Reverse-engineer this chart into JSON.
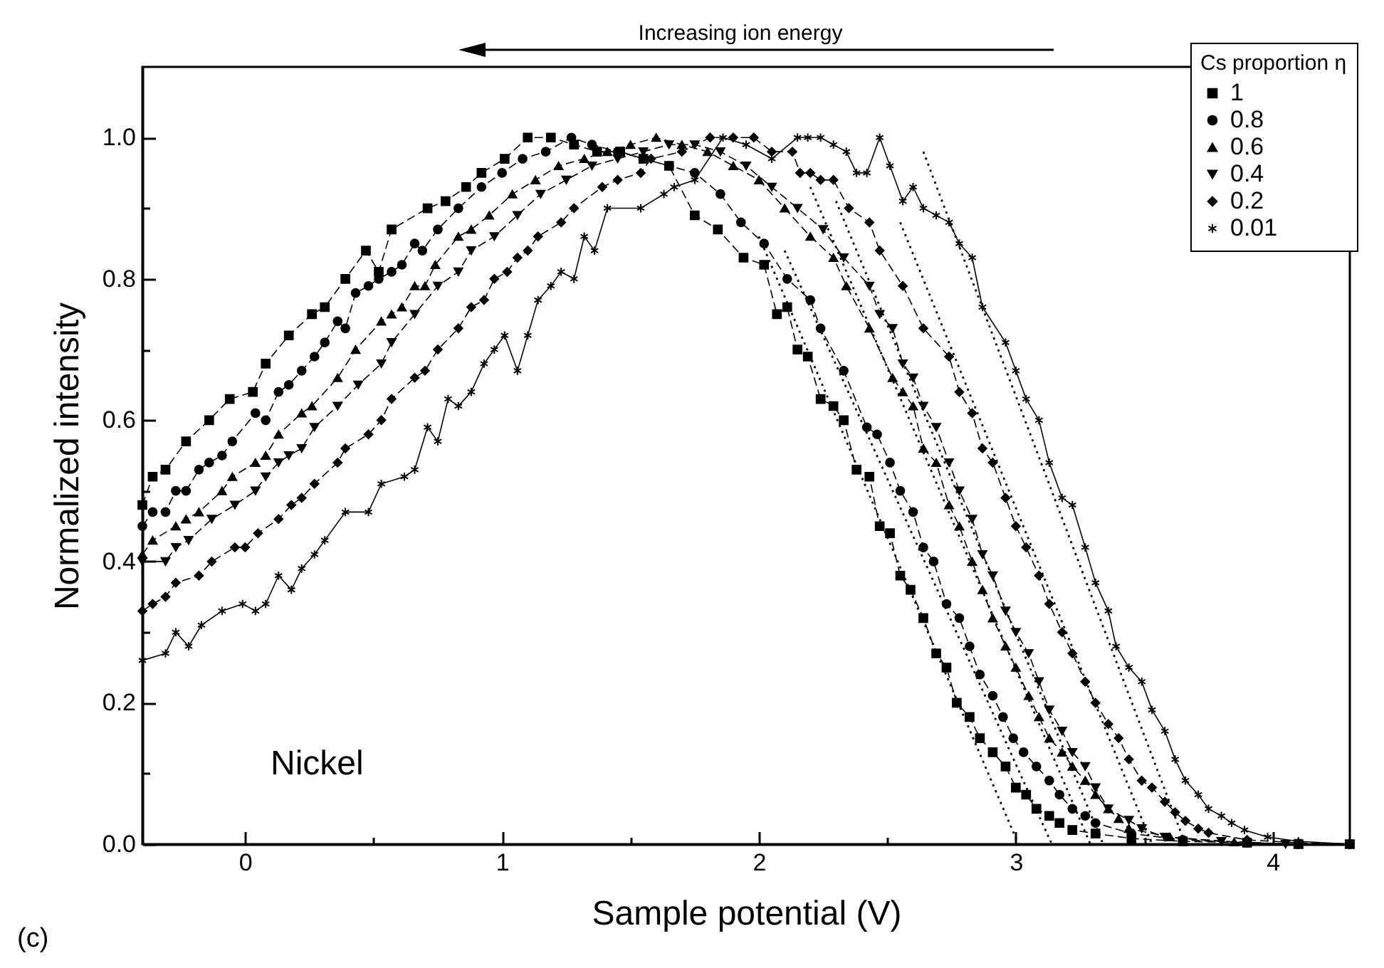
{
  "chart_data": {
    "type": "line",
    "xlabel": "Sample potential (V)",
    "ylabel": "Normalized intensity",
    "legend_title": "Cs proportion η",
    "legend": "top right",
    "annotations": [
      "Increasing ion energy",
      "Nickel",
      "(c)"
    ],
    "xlim": [
      -0.4,
      4.3
    ],
    "ylim": [
      0,
      1.1
    ],
    "xticks": [
      0,
      {
        "value": 0.5,
        "label": null
      },
      1,
      {
        "value": 1.5,
        "label": null
      },
      2,
      {
        "value": 2.5,
        "label": null
      },
      3,
      {
        "value": 3.5,
        "label": null
      },
      4
    ],
    "yticks": [
      {
        "value": 0,
        "label": "0.0"
      },
      {
        "value": 0.1,
        "label": null
      },
      {
        "value": 0.2,
        "label": "0.2"
      },
      {
        "value": 0.3,
        "label": null
      },
      {
        "value": 0.4,
        "label": "0.4"
      },
      {
        "value": 0.5,
        "label": null
      },
      {
        "value": 0.6,
        "label": "0.6"
      },
      {
        "value": 0.7,
        "label": null
      },
      {
        "value": 0.8,
        "label": "0.8"
      },
      {
        "value": 0.9,
        "label": null
      },
      {
        "value": 1,
        "label": "1.0"
      }
    ],
    "series": [
      {
        "name": "1",
        "color": "#000000",
        "marker": "square",
        "line_style": "dashed",
        "x": [
          -0.4,
          -0.36,
          -0.31,
          -0.23,
          -0.14,
          -0.06,
          0.03,
          0.08,
          0.17,
          0.26,
          0.31,
          0.39,
          0.47,
          0.52,
          0.57,
          0.71,
          0.78,
          0.86,
          0.92,
          1.01,
          1.1,
          1.19,
          1.28,
          1.37,
          1.46,
          1.55,
          1.65,
          1.75,
          1.84,
          1.94,
          2.02,
          2.07,
          2.11,
          2.15,
          2.19,
          2.24,
          2.29,
          2.33,
          2.38,
          2.43,
          2.47,
          2.51,
          2.55,
          2.59,
          2.64,
          2.69,
          2.73,
          2.77,
          2.82,
          2.86,
          2.91,
          2.96,
          3.0,
          3.04,
          3.08,
          3.13,
          3.17,
          3.22,
          3.31,
          3.45,
          3.65,
          3.9,
          4.1,
          4.3
        ],
        "values": [
          0.48,
          0.52,
          0.53,
          0.57,
          0.6,
          0.63,
          0.64,
          0.68,
          0.72,
          0.75,
          0.76,
          0.8,
          0.84,
          0.81,
          0.87,
          0.9,
          0.91,
          0.93,
          0.95,
          0.97,
          1.0,
          1.0,
          0.99,
          0.98,
          0.98,
          0.97,
          0.96,
          0.89,
          0.87,
          0.83,
          0.82,
          0.75,
          0.76,
          0.7,
          0.69,
          0.63,
          0.62,
          0.6,
          0.53,
          0.52,
          0.45,
          0.44,
          0.38,
          0.36,
          0.32,
          0.27,
          0.25,
          0.2,
          0.18,
          0.15,
          0.13,
          0.11,
          0.08,
          0.07,
          0.05,
          0.04,
          0.03,
          0.02,
          0.015,
          0.008,
          0.004,
          0.002,
          0,
          0
        ]
      },
      {
        "name": "0.8",
        "color": "#000000",
        "marker": "circle",
        "line_style": "dashed",
        "x": [
          -0.4,
          -0.36,
          -0.31,
          -0.27,
          -0.23,
          -0.18,
          -0.14,
          -0.09,
          -0.05,
          0.04,
          0.08,
          0.13,
          0.17,
          0.22,
          0.27,
          0.31,
          0.36,
          0.39,
          0.43,
          0.48,
          0.52,
          0.57,
          0.61,
          0.66,
          0.69,
          0.75,
          0.83,
          0.92,
          1.0,
          1.08,
          1.17,
          1.27,
          1.35,
          1.45,
          1.55,
          1.65,
          1.75,
          1.85,
          1.93,
          2.02,
          2.11,
          2.2,
          2.24,
          2.33,
          2.42,
          2.46,
          2.51,
          2.55,
          2.6,
          2.64,
          2.68,
          2.73,
          2.78,
          2.82,
          2.86,
          2.91,
          2.95,
          2.99,
          3.03,
          3.08,
          3.13,
          3.17,
          3.22,
          3.27,
          3.31,
          3.45,
          3.65,
          3.9,
          4.1,
          4.3
        ],
        "values": [
          0.45,
          0.47,
          0.47,
          0.5,
          0.5,
          0.53,
          0.54,
          0.55,
          0.57,
          0.61,
          0.6,
          0.64,
          0.65,
          0.67,
          0.69,
          0.71,
          0.74,
          0.73,
          0.78,
          0.79,
          0.8,
          0.81,
          0.82,
          0.85,
          0.84,
          0.87,
          0.9,
          0.93,
          0.95,
          0.97,
          0.98,
          1.0,
          0.99,
          0.98,
          0.97,
          0.96,
          0.95,
          0.92,
          0.88,
          0.85,
          0.8,
          0.77,
          0.73,
          0.67,
          0.59,
          0.58,
          0.54,
          0.5,
          0.47,
          0.42,
          0.4,
          0.34,
          0.32,
          0.28,
          0.24,
          0.21,
          0.18,
          0.15,
          0.13,
          0.11,
          0.09,
          0.07,
          0.05,
          0.04,
          0.03,
          0.015,
          0.006,
          0.002,
          0,
          0
        ]
      },
      {
        "name": "0.6",
        "color": "#000000",
        "marker": "triangle",
        "line_style": "dashed",
        "x": [
          -0.4,
          -0.36,
          -0.27,
          -0.23,
          -0.18,
          -0.09,
          -0.05,
          0.04,
          0.08,
          0.13,
          0.22,
          0.26,
          0.36,
          0.43,
          0.53,
          0.57,
          0.61,
          0.66,
          0.7,
          0.74,
          0.83,
          0.88,
          0.95,
          1.04,
          1.13,
          1.22,
          1.32,
          1.41,
          1.5,
          1.6,
          1.7,
          1.8,
          1.9,
          2.0,
          2.1,
          2.2,
          2.29,
          2.34,
          2.43,
          2.52,
          2.56,
          2.6,
          2.64,
          2.69,
          2.74,
          2.78,
          2.83,
          2.87,
          2.91,
          2.96,
          3.0,
          3.05,
          3.09,
          3.13,
          3.18,
          3.22,
          3.27,
          3.31,
          3.36,
          3.4,
          3.44,
          3.6,
          3.85,
          4.1,
          4.3
        ],
        "values": [
          0.41,
          0.43,
          0.45,
          0.46,
          0.47,
          0.5,
          0.52,
          0.54,
          0.55,
          0.58,
          0.61,
          0.62,
          0.66,
          0.7,
          0.74,
          0.75,
          0.76,
          0.79,
          0.79,
          0.82,
          0.86,
          0.87,
          0.89,
          0.92,
          0.94,
          0.96,
          0.97,
          0.98,
          0.99,
          1.0,
          0.99,
          0.98,
          0.96,
          0.94,
          0.9,
          0.86,
          0.83,
          0.79,
          0.73,
          0.66,
          0.64,
          0.62,
          0.56,
          0.54,
          0.48,
          0.45,
          0.4,
          0.36,
          0.32,
          0.28,
          0.25,
          0.21,
          0.18,
          0.15,
          0.13,
          0.11,
          0.09,
          0.07,
          0.05,
          0.036,
          0.022,
          0.01,
          0.003,
          0,
          0
        ]
      },
      {
        "name": "0.4",
        "color": "#000000",
        "marker": "triangle-down",
        "line_style": "dashed",
        "x": [
          -0.4,
          -0.31,
          -0.27,
          -0.22,
          -0.13,
          -0.04,
          0.04,
          0.08,
          0.13,
          0.17,
          0.22,
          0.27,
          0.36,
          0.44,
          0.53,
          0.57,
          0.66,
          0.75,
          0.83,
          0.88,
          0.97,
          1.06,
          1.15,
          1.25,
          1.35,
          1.45,
          1.55,
          1.65,
          1.75,
          1.85,
          1.95,
          2.05,
          2.15,
          2.25,
          2.33,
          2.43,
          2.47,
          2.52,
          2.56,
          2.6,
          2.64,
          2.69,
          2.74,
          2.78,
          2.83,
          2.87,
          2.91,
          2.96,
          3.0,
          3.05,
          3.09,
          3.13,
          3.18,
          3.22,
          3.27,
          3.31,
          3.36,
          3.44,
          3.49,
          3.58,
          3.8,
          4.05,
          4.3
        ],
        "values": [
          0.4,
          0.4,
          0.42,
          0.43,
          0.46,
          0.48,
          0.5,
          0.52,
          0.54,
          0.55,
          0.56,
          0.59,
          0.62,
          0.65,
          0.68,
          0.71,
          0.75,
          0.79,
          0.81,
          0.84,
          0.86,
          0.89,
          0.92,
          0.94,
          0.96,
          0.97,
          0.98,
          0.99,
          0.99,
          0.98,
          0.96,
          0.93,
          0.9,
          0.87,
          0.83,
          0.79,
          0.75,
          0.73,
          0.68,
          0.66,
          0.62,
          0.59,
          0.54,
          0.5,
          0.46,
          0.41,
          0.38,
          0.33,
          0.3,
          0.27,
          0.23,
          0.19,
          0.16,
          0.13,
          0.11,
          0.08,
          0.05,
          0.034,
          0.022,
          0.01,
          0.004,
          0,
          0
        ]
      },
      {
        "name": "0.2",
        "color": "#000000",
        "marker": "diamond",
        "line_style": "dashed",
        "x": [
          -0.4,
          -0.36,
          -0.31,
          -0.27,
          -0.18,
          -0.13,
          -0.04,
          0.0,
          0.05,
          0.13,
          0.18,
          0.22,
          0.27,
          0.36,
          0.39,
          0.48,
          0.53,
          0.57,
          0.66,
          0.7,
          0.75,
          0.83,
          0.88,
          0.93,
          0.97,
          1.02,
          1.06,
          1.1,
          1.14,
          1.23,
          1.28,
          1.39,
          1.45,
          1.54,
          1.58,
          1.7,
          1.81,
          1.9,
          1.98,
          2.05,
          2.13,
          2.16,
          2.2,
          2.24,
          2.29,
          2.35,
          2.43,
          2.47,
          2.56,
          2.64,
          2.74,
          2.78,
          2.83,
          2.87,
          2.91,
          2.96,
          3.0,
          3.04,
          3.09,
          3.13,
          3.18,
          3.22,
          3.27,
          3.31,
          3.36,
          3.4,
          3.44,
          3.49,
          3.53,
          3.58,
          3.62,
          3.66,
          3.71,
          3.75,
          3.9,
          4.1,
          4.3
        ],
        "values": [
          0.33,
          0.34,
          0.35,
          0.37,
          0.38,
          0.4,
          0.42,
          0.42,
          0.44,
          0.46,
          0.48,
          0.49,
          0.51,
          0.54,
          0.56,
          0.58,
          0.6,
          0.63,
          0.66,
          0.67,
          0.7,
          0.73,
          0.76,
          0.77,
          0.8,
          0.81,
          0.83,
          0.84,
          0.86,
          0.88,
          0.9,
          0.93,
          0.94,
          0.95,
          0.97,
          0.98,
          1.0,
          1.0,
          1.0,
          0.98,
          0.98,
          0.95,
          0.95,
          0.94,
          0.94,
          0.9,
          0.88,
          0.84,
          0.79,
          0.73,
          0.69,
          0.64,
          0.61,
          0.56,
          0.54,
          0.49,
          0.45,
          0.42,
          0.38,
          0.34,
          0.3,
          0.27,
          0.23,
          0.2,
          0.17,
          0.15,
          0.12,
          0.09,
          0.08,
          0.06,
          0.045,
          0.033,
          0.022,
          0.016,
          0.006,
          0.002,
          0
        ]
      },
      {
        "name": "0.01",
        "color": "#000000",
        "marker": "cross",
        "line_style": "solid",
        "x": [
          -0.4,
          -0.31,
          -0.27,
          -0.22,
          -0.17,
          -0.09,
          -0.01,
          0.04,
          0.08,
          0.13,
          0.18,
          0.22,
          0.27,
          0.31,
          0.39,
          0.48,
          0.53,
          0.62,
          0.66,
          0.71,
          0.75,
          0.79,
          0.83,
          0.88,
          0.93,
          0.97,
          1.01,
          1.06,
          1.1,
          1.14,
          1.19,
          1.23,
          1.28,
          1.32,
          1.36,
          1.41,
          1.54,
          1.63,
          1.67,
          1.75,
          1.86,
          1.95,
          2.05,
          2.15,
          2.19,
          2.24,
          2.29,
          2.34,
          2.38,
          2.42,
          2.47,
          2.51,
          2.56,
          2.6,
          2.64,
          2.69,
          2.74,
          2.78,
          2.83,
          2.87,
          2.96,
          3.0,
          3.04,
          3.09,
          3.13,
          3.18,
          3.22,
          3.27,
          3.31,
          3.36,
          3.39,
          3.44,
          3.49,
          3.53,
          3.58,
          3.62,
          3.66,
          3.71,
          3.75,
          3.8,
          3.84,
          3.89,
          3.98,
          4.1,
          4.3
        ],
        "values": [
          0.26,
          0.27,
          0.3,
          0.28,
          0.31,
          0.33,
          0.34,
          0.33,
          0.34,
          0.38,
          0.36,
          0.39,
          0.41,
          0.43,
          0.47,
          0.47,
          0.51,
          0.52,
          0.53,
          0.59,
          0.57,
          0.63,
          0.62,
          0.64,
          0.68,
          0.7,
          0.72,
          0.67,
          0.72,
          0.77,
          0.79,
          0.81,
          0.8,
          0.86,
          0.84,
          0.9,
          0.9,
          0.92,
          0.93,
          0.94,
          1.0,
          0.99,
          0.97,
          1.0,
          1.0,
          1.0,
          0.99,
          0.98,
          0.95,
          0.95,
          1.0,
          0.96,
          0.91,
          0.93,
          0.9,
          0.89,
          0.88,
          0.85,
          0.83,
          0.76,
          0.71,
          0.67,
          0.63,
          0.6,
          0.54,
          0.49,
          0.48,
          0.42,
          0.37,
          0.33,
          0.28,
          0.25,
          0.23,
          0.19,
          0.16,
          0.12,
          0.09,
          0.07,
          0.05,
          0.04,
          0.03,
          0.02,
          0.01,
          0.004,
          0
        ]
      },
      {
        "type": "line",
        "color": "#000000",
        "marker": "none",
        "line_style": "dotted",
        "x": [
          2.0,
          3.01
        ],
        "values": [
          0.86,
          0
        ]
      },
      {
        "type": "line",
        "color": "#000000",
        "marker": "none",
        "line_style": "dotted",
        "x": [
          2.1,
          3.14
        ],
        "values": [
          0.84,
          0
        ]
      },
      {
        "type": "line",
        "color": "#000000",
        "marker": "none",
        "line_style": "dotted",
        "x": [
          2.2,
          3.29
        ],
        "values": [
          0.93,
          0
        ]
      },
      {
        "type": "line",
        "color": "#000000",
        "marker": "none",
        "line_style": "dotted",
        "x": [
          2.3,
          3.34
        ],
        "values": [
          0.91,
          0
        ]
      },
      {
        "type": "line",
        "color": "#000000",
        "marker": "none",
        "line_style": "dotted",
        "x": [
          2.55,
          3.53
        ],
        "values": [
          0.88,
          0
        ]
      },
      {
        "type": "line",
        "color": "#000000",
        "marker": "none",
        "line_style": "dotted",
        "x": [
          2.64,
          3.66
        ],
        "values": [
          0.98,
          0
        ]
      }
    ]
  }
}
